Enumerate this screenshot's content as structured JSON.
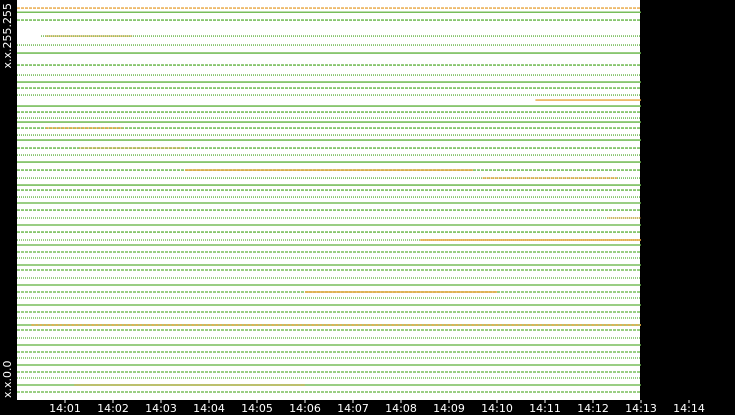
{
  "chart_data": {
    "type": "strip",
    "xlim": [
      840,
      855
    ],
    "xticks": [
      {
        "value": 841,
        "label": "14:01"
      },
      {
        "value": 842,
        "label": "14:02"
      },
      {
        "value": 843,
        "label": "14:03"
      },
      {
        "value": 844,
        "label": "14:04"
      },
      {
        "value": 845,
        "label": "14:05"
      },
      {
        "value": 846,
        "label": "14:06"
      },
      {
        "value": 847,
        "label": "14:07"
      },
      {
        "value": 848,
        "label": "14:08"
      },
      {
        "value": 849,
        "label": "14:09"
      },
      {
        "value": 850,
        "label": "14:10"
      },
      {
        "value": 851,
        "label": "14:11"
      },
      {
        "value": 852,
        "label": "14:12"
      },
      {
        "value": 853,
        "label": "14:13"
      },
      {
        "value": 854,
        "label": "14:14"
      }
    ],
    "ylim": [
      0,
      65535
    ],
    "yticks": [
      {
        "value": 0,
        "label": "x.x.0.0"
      },
      {
        "value": 65535,
        "label": "x.x.255.255"
      }
    ],
    "series": [
      {
        "color": "#6ab84a",
        "segments": [
          [
            62710,
            840,
            853
          ],
          [
            58563,
            840,
            853
          ],
          [
            57236,
            840,
            853
          ],
          [
            55245,
            840,
            853
          ],
          [
            53586,
            840,
            853
          ],
          [
            52424,
            840,
            853
          ],
          [
            51429,
            840,
            853
          ],
          [
            50268,
            840,
            853
          ],
          [
            48443,
            840,
            853
          ],
          [
            47447,
            840,
            853
          ],
          [
            46452,
            840,
            853
          ],
          [
            45788,
            840,
            853
          ],
          [
            44793,
            840,
            853
          ],
          [
            43632,
            840,
            853
          ],
          [
            42802,
            840,
            853
          ],
          [
            41475,
            840,
            853
          ],
          [
            40314,
            840,
            853
          ],
          [
            39152,
            840,
            853
          ],
          [
            37825,
            840,
            853
          ],
          [
            36498,
            840,
            853
          ],
          [
            35337,
            840,
            853
          ],
          [
            34507,
            840,
            853
          ],
          [
            33346,
            840,
            853
          ],
          [
            32351,
            840,
            853
          ],
          [
            31189,
            840,
            853
          ],
          [
            29862,
            840,
            853
          ],
          [
            28701,
            840,
            853
          ],
          [
            27539,
            840,
            853
          ],
          [
            26212,
            840,
            853
          ],
          [
            25383,
            840,
            853
          ],
          [
            24221,
            840,
            853
          ],
          [
            23226,
            840,
            853
          ],
          [
            22065,
            840,
            853
          ],
          [
            21235,
            840,
            853
          ],
          [
            19908,
            840,
            853
          ],
          [
            18747,
            840,
            853
          ],
          [
            17585,
            840,
            853
          ],
          [
            16590,
            840,
            853
          ],
          [
            15429,
            840,
            853
          ],
          [
            14267,
            840,
            853
          ],
          [
            13272,
            840,
            853
          ],
          [
            12111,
            840,
            853
          ],
          [
            11281,
            840,
            853
          ],
          [
            9954,
            840,
            853
          ],
          [
            8793,
            840,
            853
          ],
          [
            7631,
            840,
            853
          ],
          [
            6636,
            840,
            853
          ],
          [
            5475,
            840,
            853
          ],
          [
            4313,
            840,
            853
          ],
          [
            3318,
            840,
            853
          ],
          [
            2157,
            840,
            853
          ],
          [
            995,
            840,
            853
          ],
          [
            60056,
            840.5,
            853
          ],
          [
            64000,
            840,
            853
          ]
        ]
      },
      {
        "color": "#e8a33a",
        "segments": [
          [
            64701,
            840,
            853
          ],
          [
            60056,
            840.6,
            842.4
          ],
          [
            49438,
            850.8,
            853
          ],
          [
            44793,
            840.6,
            842.2
          ],
          [
            41475,
            841.3,
            843.5
          ],
          [
            37825,
            843.5,
            849.5
          ],
          [
            36498,
            849.7,
            852.5
          ],
          [
            29862,
            852.3,
            853
          ],
          [
            26212,
            848.4,
            853
          ],
          [
            12111,
            840.3,
            853
          ],
          [
            2157,
            841.2,
            846
          ],
          [
            17585,
            846,
            850
          ]
        ]
      }
    ]
  }
}
